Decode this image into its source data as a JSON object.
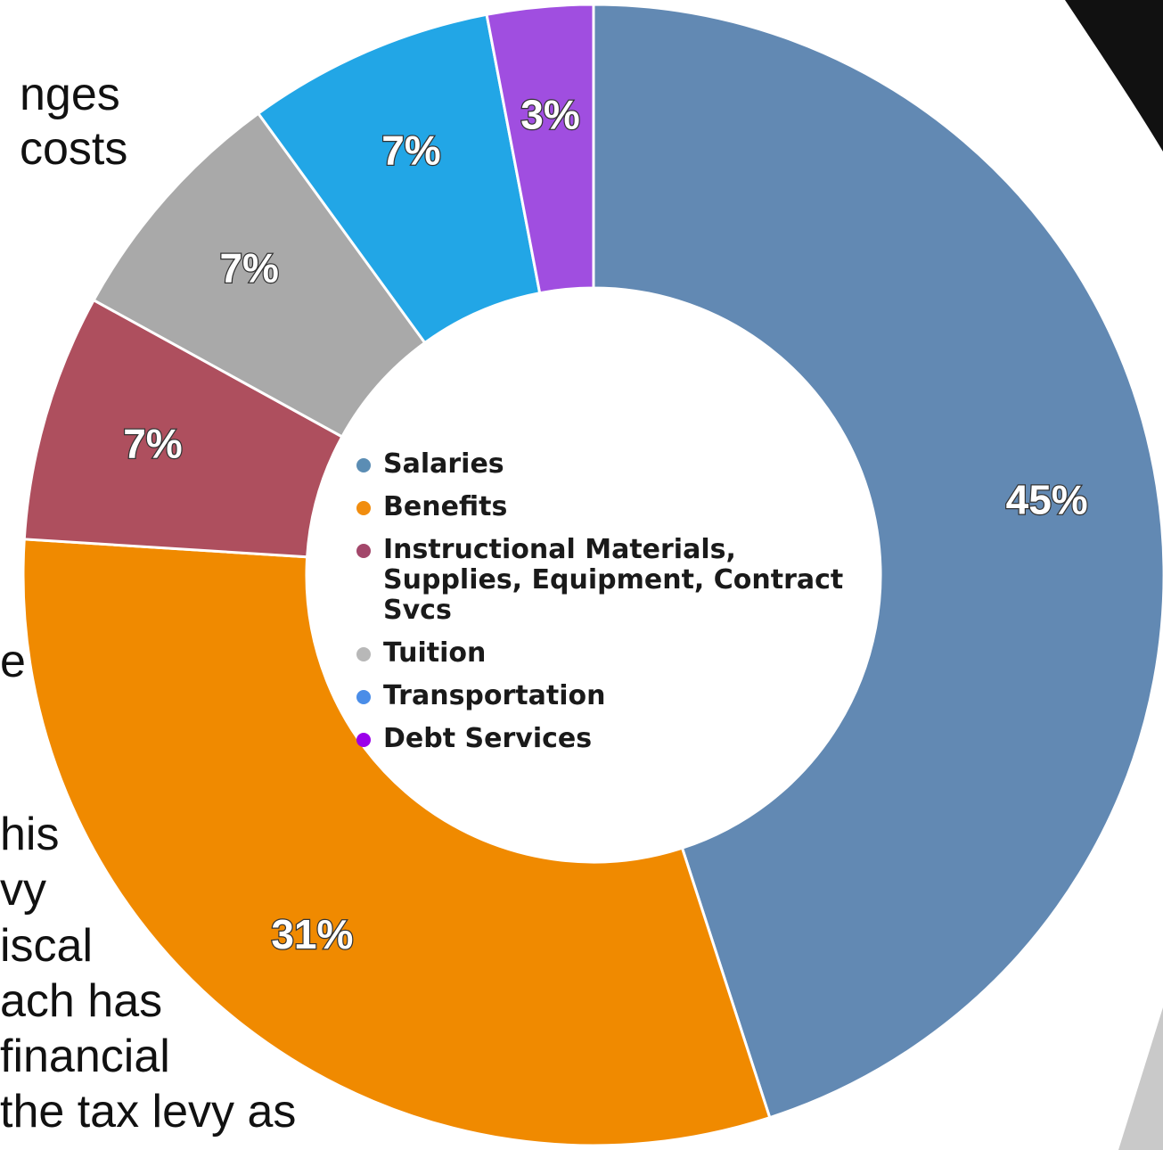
{
  "background_text": [
    "nges",
    "costs",
    "e",
    "his",
    "vy",
    "iscal",
    "ach has",
    "financial",
    "the tax levy as"
  ],
  "chart_data": {
    "type": "pie",
    "style": "donut",
    "categories": [
      "Salaries",
      "Benefits",
      "Instructional Materials, Supplies, Equipment, Contract Svcs",
      "Tuition",
      "Transportation",
      "Debt Services"
    ],
    "values": [
      45,
      31,
      7,
      7,
      7,
      3
    ],
    "value_labels": [
      "45%",
      "31%",
      "7%",
      "7%",
      "7%",
      "3%"
    ],
    "slice_colors": [
      "#6289b3",
      "#f08a00",
      "#ae4f5e",
      "#a9a9a9",
      "#22a6e6",
      "#a04ee0"
    ],
    "legend": {
      "placement": "center",
      "items": [
        {
          "label": "Salaries",
          "color": "#5b8db4"
        },
        {
          "label": "Benefits",
          "color": "#f18d0f"
        },
        {
          "label": "Instructional Materials, Supplies, Equipment, Contract Svcs",
          "color": "#a3476a"
        },
        {
          "label": "Tuition",
          "color": "#b8b8b8"
        },
        {
          "label": "Transportation",
          "color": "#4a8de8"
        },
        {
          "label": "Debt Services",
          "color": "#9b00ea"
        }
      ]
    }
  }
}
